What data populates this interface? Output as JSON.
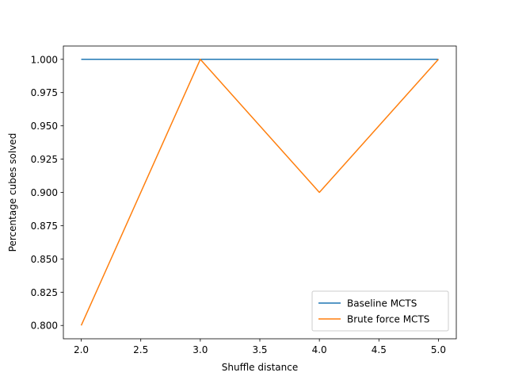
{
  "chart_data": {
    "type": "line",
    "title": "",
    "xlabel": "Shuffle distance",
    "ylabel": "Percentage cubes solved",
    "xlim": [
      1.85,
      5.15
    ],
    "ylim": [
      0.79,
      1.01
    ],
    "xticks": [
      2.0,
      2.5,
      3.0,
      3.5,
      4.0,
      4.5,
      5.0
    ],
    "xtick_labels": [
      "2.0",
      "2.5",
      "3.0",
      "3.5",
      "4.0",
      "4.5",
      "5.0"
    ],
    "yticks": [
      0.8,
      0.825,
      0.85,
      0.875,
      0.9,
      0.925,
      0.95,
      0.975,
      1.0
    ],
    "ytick_labels": [
      "0.800",
      "0.825",
      "0.850",
      "0.875",
      "0.900",
      "0.925",
      "0.950",
      "0.975",
      "1.000"
    ],
    "grid": false,
    "legend_position": "lower-right",
    "series": [
      {
        "name": "Baseline MCTS",
        "color": "#1f77b4",
        "x": [
          2,
          3,
          4,
          5
        ],
        "y": [
          1.0,
          1.0,
          1.0,
          1.0
        ]
      },
      {
        "name": "Brute force MCTS",
        "color": "#ff7f0e",
        "x": [
          2,
          3,
          4,
          5
        ],
        "y": [
          0.8,
          1.0,
          0.9,
          1.0
        ]
      }
    ]
  }
}
